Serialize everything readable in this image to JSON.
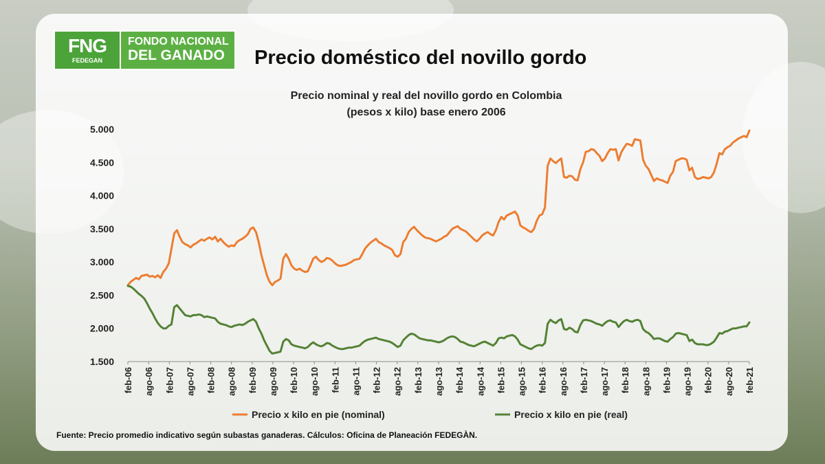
{
  "logo": {
    "mark": "FNG",
    "sub": "FEDEGAN",
    "line1": "FONDO NACIONAL",
    "line2": "DEL GANADO"
  },
  "page_title": "Precio doméstico del novillo gordo",
  "source_note": "Fuente: Precio promedio indicativo según subastas ganaderas. Cálculos: Oficina de Planeación FEDEGÀN.",
  "colors": {
    "nominal": "#ed7d31",
    "real": "#548235",
    "logo_green": "#4ba33a"
  },
  "chart_data": {
    "type": "line",
    "title": "Precio nominal y real del novillo gordo en Colombia",
    "subtitle": "(pesos x kilo) base enero 2006",
    "ylim": [
      1500,
      5000
    ],
    "y_ticks": [
      "5.000",
      "4.500",
      "4.000",
      "3.500",
      "3.000",
      "2.500",
      "2.000",
      "1.500"
    ],
    "x_tick_labels": [
      "feb-06",
      "ago-06",
      "feb-07",
      "ago-07",
      "feb-08",
      "ago-08",
      "feb-09",
      "ago-09",
      "feb-10",
      "ago-10",
      "feb-11",
      "ago-11",
      "feb-12",
      "ago-12",
      "feb-13",
      "ago-13",
      "feb-14",
      "ago-14",
      "feb-15",
      "ago-15",
      "feb-16",
      "ago-16",
      "feb-17",
      "ago-17",
      "feb-18",
      "ago-18",
      "feb-19",
      "ago-19",
      "feb-20",
      "ago-20",
      "feb-21"
    ],
    "x_start": "feb-06",
    "x_end": "feb-21",
    "grid": false,
    "legend_position": "bottom",
    "series": [
      {
        "name": "Precio x kilo en pie (nominal)",
        "values": [
          2650,
          2700,
          2730,
          2760,
          2740,
          2790,
          2800,
          2810,
          2780,
          2790,
          2770,
          2800,
          2760,
          2850,
          2900,
          2980,
          3200,
          3430,
          3480,
          3380,
          3300,
          3270,
          3250,
          3220,
          3260,
          3280,
          3310,
          3340,
          3320,
          3350,
          3370,
          3340,
          3380,
          3310,
          3350,
          3300,
          3260,
          3230,
          3250,
          3240,
          3300,
          3330,
          3350,
          3380,
          3420,
          3500,
          3520,
          3450,
          3300,
          3100,
          2950,
          2800,
          2700,
          2650,
          2700,
          2720,
          2750,
          3050,
          3120,
          3050,
          2950,
          2900,
          2880,
          2900,
          2870,
          2850,
          2860,
          2950,
          3050,
          3080,
          3030,
          3000,
          3020,
          3060,
          3050,
          3020,
          2980,
          2950,
          2940,
          2950,
          2960,
          2980,
          3000,
          3030,
          3040,
          3050,
          3120,
          3200,
          3250,
          3290,
          3320,
          3350,
          3300,
          3280,
          3250,
          3230,
          3210,
          3180,
          3100,
          3080,
          3120,
          3300,
          3350,
          3450,
          3500,
          3530,
          3480,
          3440,
          3400,
          3370,
          3360,
          3350,
          3330,
          3310,
          3330,
          3350,
          3380,
          3400,
          3450,
          3500,
          3520,
          3540,
          3500,
          3480,
          3460,
          3420,
          3380,
          3340,
          3310,
          3350,
          3400,
          3430,
          3450,
          3420,
          3400,
          3480,
          3600,
          3680,
          3640,
          3700,
          3720,
          3740,
          3760,
          3700,
          3550,
          3520,
          3500,
          3470,
          3450,
          3500,
          3620,
          3700,
          3720,
          3820,
          4450,
          4560,
          4520,
          4490,
          4530,
          4560,
          4280,
          4270,
          4300,
          4290,
          4240,
          4230,
          4400,
          4500,
          4660,
          4670,
          4700,
          4690,
          4640,
          4600,
          4520,
          4560,
          4640,
          4700,
          4690,
          4700,
          4530,
          4650,
          4720,
          4780,
          4770,
          4750,
          4850,
          4840,
          4830,
          4540,
          4450,
          4400,
          4310,
          4220,
          4260,
          4240,
          4230,
          4210,
          4190,
          4300,
          4360,
          4520,
          4540,
          4560,
          4560,
          4540,
          4380,
          4420,
          4280,
          4250,
          4260,
          4280,
          4270,
          4260,
          4280,
          4350,
          4480,
          4640,
          4620,
          4700,
          4730,
          4750,
          4800,
          4830,
          4860,
          4880,
          4900,
          4880,
          4980
        ]
      },
      {
        "name": "Precio x kilo en pie (real)",
        "values": [
          2640,
          2630,
          2600,
          2560,
          2520,
          2490,
          2450,
          2380,
          2300,
          2230,
          2150,
          2080,
          2030,
          2000,
          2000,
          2040,
          2060,
          2320,
          2350,
          2300,
          2250,
          2200,
          2190,
          2180,
          2200,
          2200,
          2210,
          2200,
          2170,
          2180,
          2170,
          2160,
          2150,
          2100,
          2070,
          2060,
          2050,
          2030,
          2020,
          2040,
          2050,
          2060,
          2050,
          2070,
          2100,
          2120,
          2140,
          2100,
          2000,
          1920,
          1820,
          1740,
          1660,
          1620,
          1630,
          1640,
          1650,
          1800,
          1840,
          1820,
          1760,
          1740,
          1730,
          1720,
          1710,
          1700,
          1720,
          1760,
          1790,
          1760,
          1740,
          1730,
          1750,
          1780,
          1770,
          1740,
          1720,
          1700,
          1690,
          1690,
          1700,
          1710,
          1710,
          1720,
          1730,
          1740,
          1780,
          1810,
          1830,
          1840,
          1850,
          1860,
          1840,
          1830,
          1820,
          1810,
          1800,
          1780,
          1750,
          1720,
          1740,
          1820,
          1860,
          1900,
          1920,
          1910,
          1880,
          1850,
          1840,
          1830,
          1820,
          1820,
          1810,
          1800,
          1790,
          1800,
          1820,
          1850,
          1870,
          1880,
          1870,
          1840,
          1800,
          1790,
          1770,
          1750,
          1740,
          1730,
          1750,
          1770,
          1790,
          1800,
          1780,
          1760,
          1740,
          1780,
          1850,
          1860,
          1850,
          1880,
          1890,
          1900,
          1880,
          1830,
          1760,
          1740,
          1720,
          1700,
          1690,
          1720,
          1740,
          1750,
          1740,
          1780,
          2070,
          2130,
          2100,
          2080,
          2120,
          2140,
          1990,
          1980,
          2010,
          1990,
          1950,
          1940,
          2050,
          2120,
          2130,
          2120,
          2110,
          2090,
          2070,
          2060,
          2040,
          2080,
          2110,
          2120,
          2100,
          2090,
          2020,
          2070,
          2110,
          2130,
          2110,
          2100,
          2120,
          2130,
          2110,
          1990,
          1950,
          1930,
          1890,
          1840,
          1850,
          1850,
          1830,
          1810,
          1800,
          1840,
          1870,
          1920,
          1930,
          1920,
          1910,
          1900,
          1810,
          1830,
          1780,
          1760,
          1760,
          1760,
          1750,
          1750,
          1770,
          1800,
          1860,
          1930,
          1920,
          1950,
          1960,
          1980,
          2000,
          2000,
          2010,
          2020,
          2030,
          2030,
          2090
        ]
      }
    ]
  }
}
